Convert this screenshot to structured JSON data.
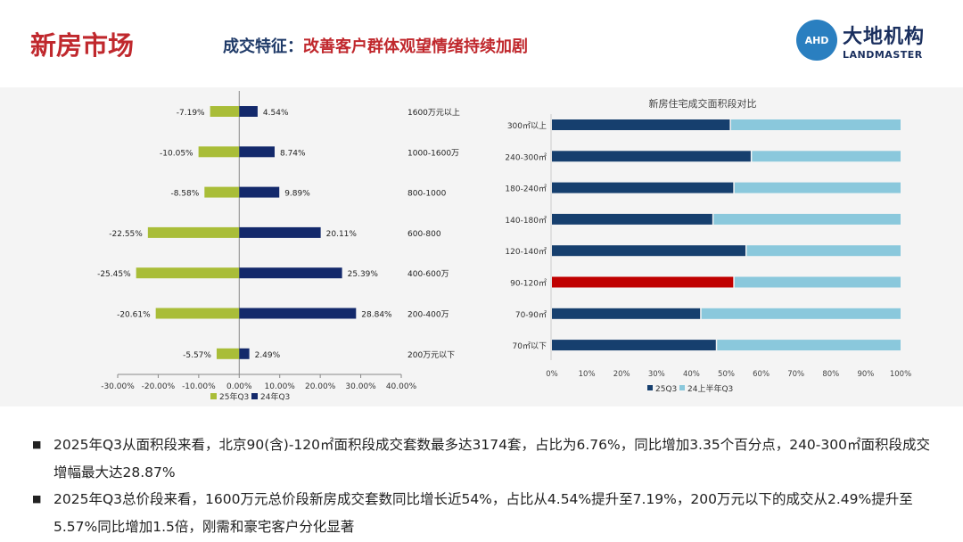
{
  "header": {
    "title": "新房市场",
    "subtitle_key": "成交特征：",
    "subtitle_text": "改善客户群体观望情绪持续加剧",
    "logo": {
      "badge": "AHD",
      "cn": "大地机构",
      "en": "LANDMASTER"
    }
  },
  "chart_data": [
    {
      "type": "bar",
      "title": "",
      "orientation": "horizontal",
      "categories": [
        "1600万元以上",
        "1000-1600万",
        "800-1000",
        "600-800",
        "400-600万",
        "200-400万",
        "200万元以下"
      ],
      "series": [
        {
          "name": "25年Q3",
          "color": "#a9bd38",
          "values": [
            -7.19,
            -10.05,
            -8.58,
            -22.55,
            -25.45,
            -20.61,
            -5.57
          ],
          "labels": [
            "-7.19%",
            "-10.05%",
            "-8.58%",
            "-22.55%",
            "-25.45%",
            "-20.61%",
            "-5.57%"
          ]
        },
        {
          "name": "24年Q3",
          "color": "#13296b",
          "values": [
            4.54,
            8.74,
            9.89,
            20.11,
            25.39,
            28.84,
            2.49
          ],
          "labels": [
            "4.54%",
            "8.74%",
            "9.89%",
            "20.11%",
            "25.39%",
            "28.84%",
            "2.49%"
          ]
        }
      ],
      "xlim": [
        -30,
        40
      ],
      "xticks": [
        "-30.00%",
        "-20.00%",
        "-10.00%",
        "0.00%",
        "10.00%",
        "20.00%",
        "30.00%",
        "40.00%"
      ],
      "legend": "bottom"
    },
    {
      "type": "bar",
      "stacked": true,
      "orientation": "horizontal",
      "title": "新房住宅成交面积段对比",
      "categories": [
        "300㎡以上",
        "240-300㎡",
        "180-240㎡",
        "140-180㎡",
        "120-140㎡",
        "90-120㎡",
        "70-90㎡",
        "70㎡以下"
      ],
      "series": [
        {
          "name": "25Q3",
          "color": "#163f6e",
          "values": [
            51,
            57,
            52,
            46,
            55.5,
            52,
            42.5,
            47
          ]
        },
        {
          "name": "24上半年Q3",
          "color": "#8ac8dc",
          "values": [
            49,
            43,
            48,
            54,
            44.5,
            48,
            57.5,
            53
          ]
        }
      ],
      "highlight": {
        "category": "90-120㎡",
        "color": "#c00000"
      },
      "xlim": [
        0,
        100
      ],
      "xticks": [
        "0%",
        "10%",
        "20%",
        "30%",
        "40%",
        "50%",
        "60%",
        "70%",
        "80%",
        "90%",
        "100%"
      ],
      "legend": "bottom"
    }
  ],
  "bullets": [
    "2025年Q3从面积段来看，北京90(含)-120㎡面积段成交套数最多达3174套，占比为6.76%，同比增加3.35个百分点，240-300㎡面积段成交增幅最大达28.87%",
    "2025年Q3总价段来看，1600万元总价段新房成交套数同比增长近54%，占比从4.54%提升至7.19%，200万元以下的成交从2.49%提升至5.57%同比增加1.5倍，刚需和豪宅客户分化显著"
  ],
  "bullet_icon": "square-bullet"
}
